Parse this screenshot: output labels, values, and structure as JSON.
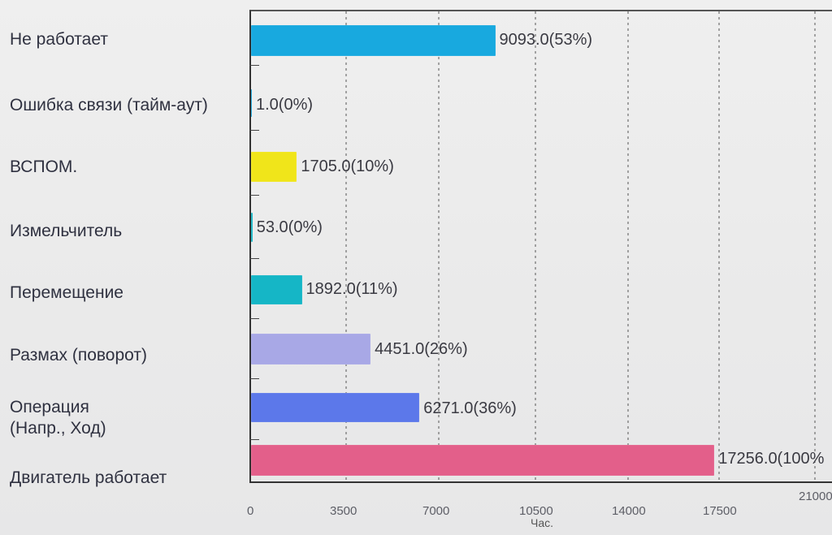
{
  "chart_data": {
    "type": "bar",
    "orientation": "horizontal",
    "categories": [
      "Не работает",
      "Ошибка связи (тайм-аут)",
      "ВСПОМ.",
      "Измельчитель",
      "Перемещение",
      "Размах (поворот)",
      "Операция\n(Напр., Ход)",
      "Двигатель работает"
    ],
    "values": [
      9093.0,
      1.0,
      1705.0,
      53.0,
      1892.0,
      4451.0,
      6271.0,
      17256.0
    ],
    "value_labels": [
      "9093.0(53%)",
      "1.0(0%)",
      "1705.0(10%)",
      "53.0(0%)",
      "1892.0(11%)",
      "4451.0(26%)",
      "6271.0(36%)",
      "17256.0(100%"
    ],
    "bar_colors": [
      "#18a9df",
      "#18a9df",
      "#f0e51a",
      "#15b6c6",
      "#15b6c6",
      "#a8a8e6",
      "#5c78ea",
      "#e35f8a"
    ],
    "x_ticks": [
      "0",
      "3500",
      "7000",
      "10500",
      "14000",
      "17500",
      "21000"
    ],
    "xlabel": "Час.",
    "xlim": [
      0,
      21000
    ],
    "grid": "vertical dashed lines"
  }
}
